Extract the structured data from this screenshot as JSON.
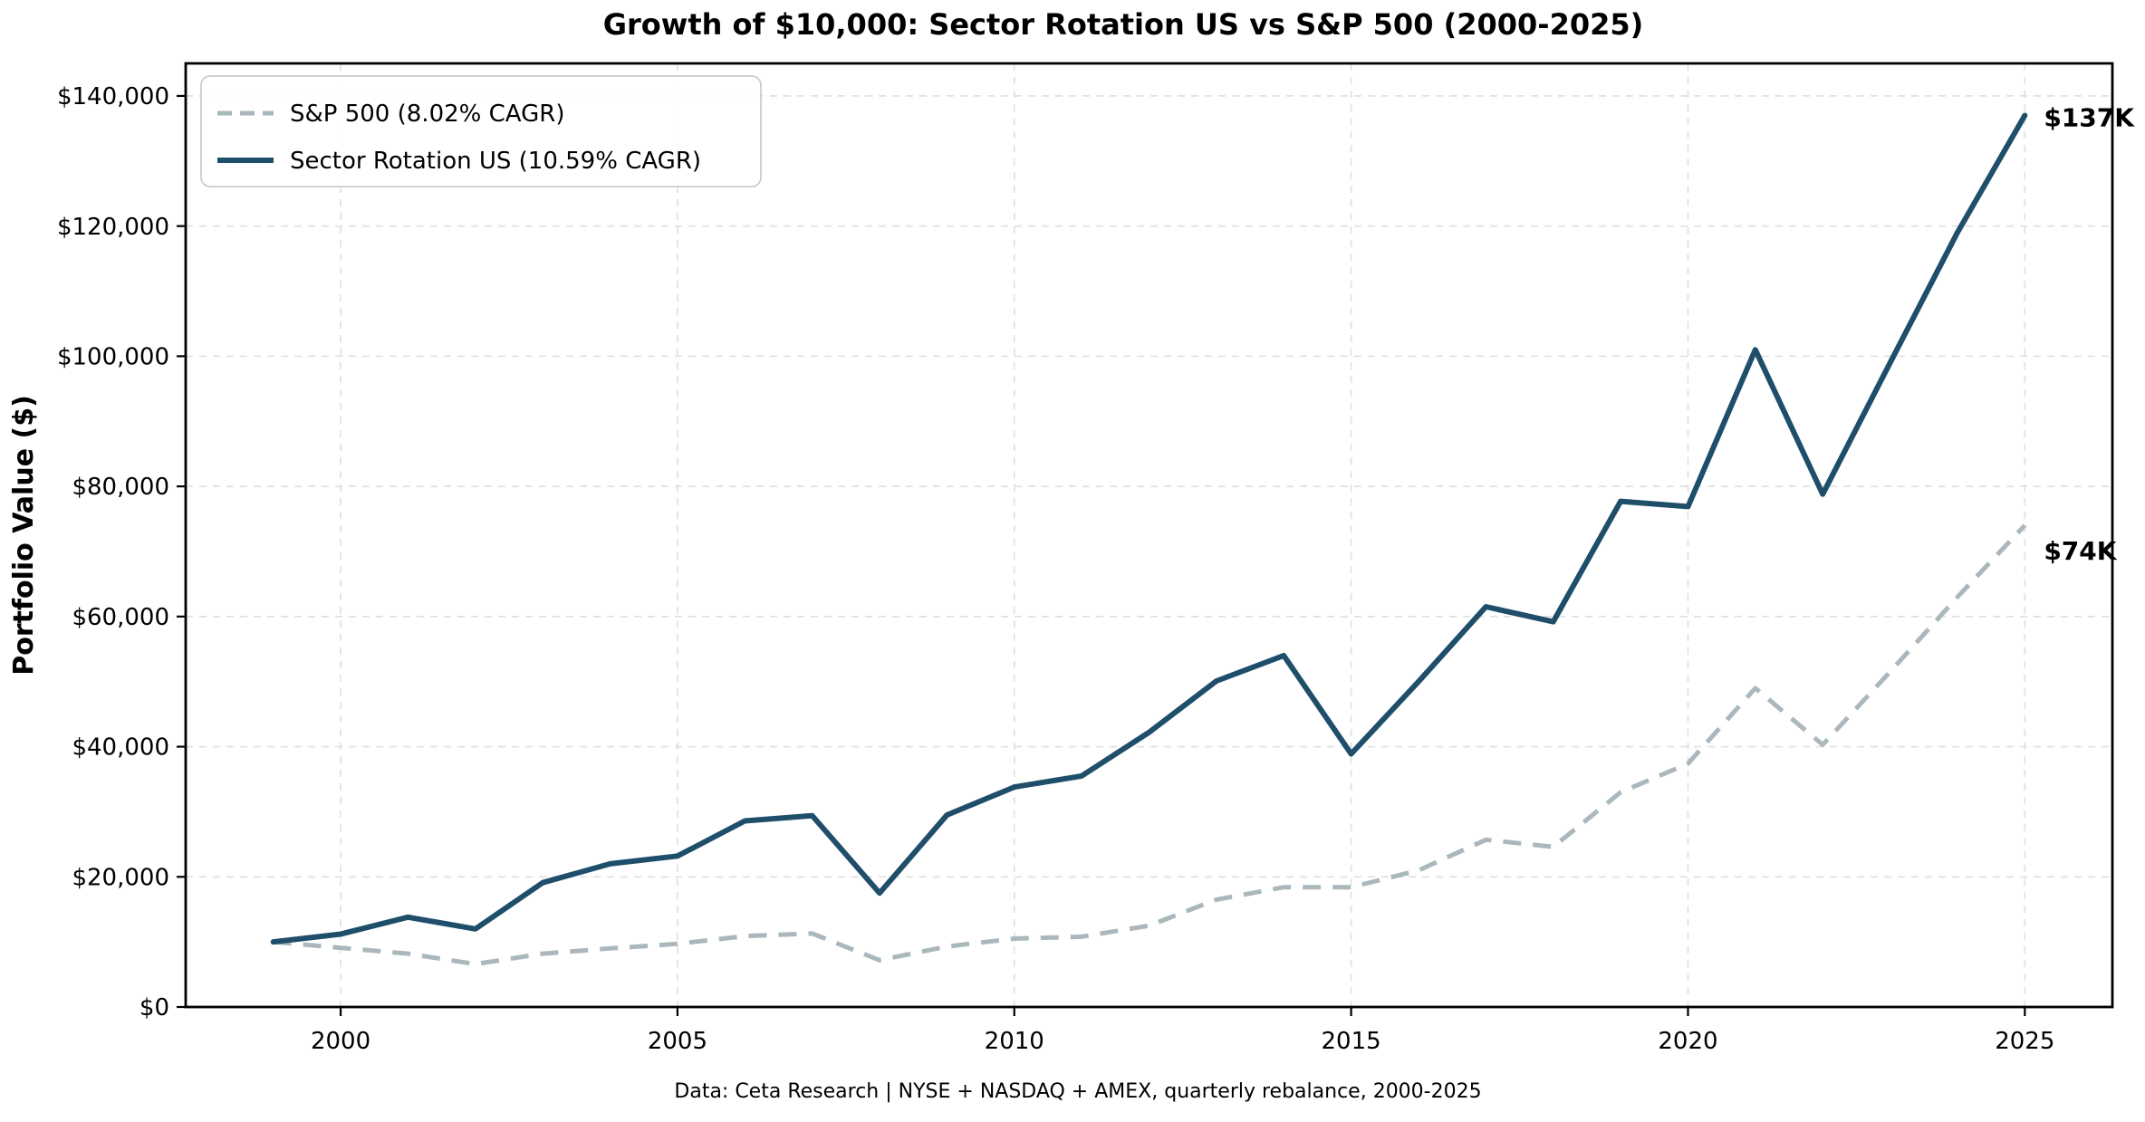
{
  "title": "Growth of $10,000: Sector Rotation US vs S&P 500 (2000-2025)",
  "footer": "Data: Ceta Research | NYSE + NASDAQ + AMEX, quarterly rebalance, 2000-2025",
  "colors": {
    "sector_rotation_line": "#1f4e6b",
    "sp500_line": "#aab8bd",
    "grid": "#dfdfdf",
    "spine": "#000000",
    "footer_text": "#98a6ac",
    "end_label_sp500": "#a9b6bb",
    "end_label_rotation": "#1f4e6b"
  },
  "chart_data": {
    "type": "line",
    "title": "Growth of $10,000: Sector Rotation US vs S&P 500 (2000-2025)",
    "xlabel": "",
    "ylabel": "Portfolio Value ($)",
    "grid": true,
    "legend_position": "upper-left",
    "xlim": [
      1997.7,
      2026.3
    ],
    "ylim": [
      0,
      145000
    ],
    "xticks": [
      2000,
      2005,
      2010,
      2015,
      2020,
      2025
    ],
    "yticks": [
      0,
      20000,
      40000,
      60000,
      80000,
      100000,
      120000,
      140000
    ],
    "ytick_labels": [
      "$0",
      "$20,000",
      "$40,000",
      "$60,000",
      "$80,000",
      "$100,000",
      "$120,000",
      "$140,000"
    ],
    "x": [
      1999,
      2000,
      2001,
      2002,
      2003,
      2004,
      2005,
      2006,
      2007,
      2008,
      2009,
      2010,
      2011,
      2012,
      2013,
      2014,
      2015,
      2016,
      2017,
      2018,
      2019,
      2020,
      2021,
      2022,
      2023,
      2024,
      2025
    ],
    "series": [
      {
        "name": "S&P 500 (8.02% CAGR)",
        "style": "dashed",
        "color": "#aab8bd",
        "end_label": "$74K",
        "values": [
          10000,
          9100,
          8200,
          6600,
          8200,
          9000,
          9700,
          10900,
          11300,
          7200,
          9300,
          10500,
          10800,
          12500,
          16500,
          18400,
          18400,
          21000,
          25700,
          24600,
          33000,
          37400,
          49000,
          40300,
          51500,
          63000,
          74000
        ]
      },
      {
        "name": "Sector Rotation US (10.59% CAGR)",
        "style": "solid",
        "color": "#1f4e6b",
        "end_label": "$137K",
        "values": [
          10000,
          11200,
          13800,
          12000,
          19100,
          22000,
          23200,
          28600,
          29400,
          17500,
          29500,
          33800,
          35500,
          42200,
          50100,
          54000,
          38900,
          50000,
          61500,
          59200,
          77700,
          76900,
          101000,
          78800,
          99000,
          119000,
          137000
        ]
      }
    ]
  }
}
